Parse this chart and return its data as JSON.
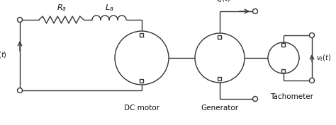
{
  "bg_color": "#ffffff",
  "line_color": "#333333",
  "text_color": "#111111",
  "labels": {
    "Ra": "$R_a$",
    "La": "$L_a$",
    "ig": "$i_g(t)$",
    "va": "$v_a(t)$",
    "vt": "$v_t(t)$",
    "dc_motor": "DC motor",
    "generator": "Generator",
    "tachometer": "Tachometer"
  },
  "figsize": [
    4.74,
    1.77
  ],
  "dpi": 100
}
